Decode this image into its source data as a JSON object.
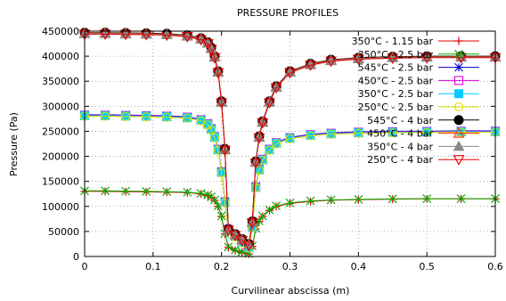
{
  "chart_data": {
    "type": "line",
    "title": "PRESSURE PROFILES",
    "xlabel": "Curvilinear abscissa (m)",
    "ylabel": "Pressure (Pa)",
    "xlim": [
      0,
      0.6
    ],
    "ylim": [
      0,
      450000
    ],
    "xticks": [
      0,
      0.1,
      0.2,
      0.3,
      0.4,
      0.5,
      0.6
    ],
    "xtick_labels": [
      "0",
      "0.1",
      "0.2",
      "0.3",
      "0.4",
      "0.5",
      "0.6"
    ],
    "yticks": [
      0,
      50000,
      100000,
      150000,
      200000,
      250000,
      300000,
      350000,
      400000,
      450000
    ],
    "ytick_labels": [
      "0",
      "50000",
      "100000",
      "150000",
      "200000",
      "250000",
      "300000",
      "350000",
      "400000",
      "450000"
    ],
    "grid": true,
    "legend_position": "top-right",
    "x": [
      0,
      0.03,
      0.06,
      0.09,
      0.12,
      0.15,
      0.17,
      0.18,
      0.185,
      0.19,
      0.195,
      0.2,
      0.205,
      0.21,
      0.22,
      0.23,
      0.24,
      0.245,
      0.25,
      0.255,
      0.26,
      0.27,
      0.28,
      0.3,
      0.33,
      0.36,
      0.4,
      0.45,
      0.5,
      0.55,
      0.6
    ],
    "series": [
      {
        "name": "350°C - 1.15 bar",
        "color": "#e00000",
        "marker": "plus",
        "values": [
          130000,
          130000,
          129500,
          129000,
          128500,
          127500,
          125000,
          122000,
          118000,
          112000,
          100000,
          80000,
          45000,
          18000,
          12000,
          8000,
          5000,
          20000,
          55000,
          70000,
          80000,
          92000,
          100000,
          106000,
          110000,
          112500,
          113500,
          114500,
          115000,
          115000,
          115000
        ]
      },
      {
        "name": "350°C - 2.5 bar",
        "color": "#00b000",
        "marker": "x",
        "values": [
          131000,
          131000,
          130500,
          130000,
          129500,
          128500,
          126000,
          123000,
          119000,
          113000,
          101000,
          81000,
          46000,
          19000,
          13000,
          9000,
          6000,
          21000,
          56000,
          71000,
          81000,
          93000,
          101000,
          107000,
          111000,
          113000,
          114000,
          115000,
          115500,
          115500,
          115500
        ]
      },
      {
        "name": "545°C - 2.5 bar",
        "color": "#0000cc",
        "marker": "asterisk",
        "values": [
          283000,
          283000,
          282500,
          282000,
          281000,
          279000,
          274000,
          266000,
          256000,
          240000,
          215000,
          170000,
          110000,
          55000,
          42000,
          30000,
          20000,
          60000,
          140000,
          175000,
          195000,
          215000,
          228000,
          238000,
          244000,
          247000,
          249000,
          250000,
          250500,
          251000,
          251000
        ]
      },
      {
        "name": "450°C - 2.5 bar",
        "color": "#dd00dd",
        "marker": "square-open",
        "values": [
          282000,
          282000,
          281500,
          281000,
          280000,
          278000,
          273000,
          265000,
          255000,
          239000,
          214000,
          169000,
          109000,
          54000,
          41000,
          29000,
          19000,
          59000,
          139000,
          174000,
          194000,
          214000,
          227000,
          237000,
          243000,
          246000,
          248000,
          249000,
          249500,
          250000,
          250000
        ]
      },
      {
        "name": "350°C - 2.5 bar",
        "color": "#00ccff",
        "marker": "square-filled",
        "values": [
          281000,
          281000,
          280500,
          280000,
          279000,
          277000,
          272000,
          264000,
          254000,
          238000,
          213000,
          168000,
          108000,
          53000,
          40000,
          28000,
          18000,
          58000,
          138000,
          173000,
          193000,
          213000,
          226000,
          236000,
          242000,
          245000,
          247000,
          248000,
          248500,
          249000,
          249000
        ]
      },
      {
        "name": "250°C - 2.5 bar",
        "color": "#e0e000",
        "marker": "circle-open",
        "values": [
          280000,
          280000,
          279500,
          279000,
          278000,
          276000,
          271000,
          263000,
          253000,
          237000,
          212000,
          167000,
          107000,
          52000,
          39000,
          27000,
          17000,
          57000,
          137000,
          172000,
          192000,
          212000,
          225000,
          235000,
          241000,
          244000,
          246000,
          247000,
          247500,
          248000,
          248000
        ]
      },
      {
        "name": "545°C - 4 bar",
        "color": "#000000",
        "marker": "circle-filled",
        "values": [
          447000,
          447000,
          446500,
          446000,
          445000,
          442000,
          436000,
          428000,
          417000,
          400000,
          370000,
          310000,
          215000,
          55000,
          45000,
          35000,
          25000,
          70000,
          190000,
          240000,
          270000,
          310000,
          340000,
          370000,
          385000,
          393000,
          397000,
          399000,
          400000,
          400000,
          400000
        ]
      },
      {
        "name": "450°C - 4 bar",
        "color": "#ff3300",
        "marker": "triangle-open",
        "values": [
          446000,
          446000,
          445500,
          445000,
          444000,
          441000,
          435000,
          427000,
          416000,
          399000,
          369000,
          309000,
          214000,
          54000,
          44000,
          34000,
          24000,
          69000,
          189000,
          239000,
          269000,
          309000,
          339000,
          369000,
          384000,
          392000,
          396000,
          398000,
          399000,
          399000,
          399000
        ]
      },
      {
        "name": "350°C - 4 bar",
        "color": "#888888",
        "marker": "triangle-filled",
        "values": [
          445000,
          445000,
          444500,
          444000,
          443000,
          440000,
          434000,
          426000,
          415000,
          398000,
          368000,
          308000,
          213000,
          53000,
          43000,
          33000,
          23000,
          68000,
          188000,
          238000,
          268000,
          308000,
          338000,
          368000,
          383000,
          391000,
          395000,
          397000,
          398000,
          398000,
          398000
        ]
      },
      {
        "name": "250°C - 4 bar",
        "color": "#dd0000",
        "marker": "triangle-down-open",
        "values": [
          444000,
          444000,
          443500,
          443000,
          442000,
          439000,
          433000,
          425000,
          414000,
          397000,
          367000,
          307000,
          212000,
          52000,
          42000,
          32000,
          22000,
          67000,
          187000,
          237000,
          267000,
          307000,
          337000,
          367000,
          382000,
          390000,
          394000,
          396000,
          397000,
          397000,
          397000
        ]
      }
    ]
  }
}
